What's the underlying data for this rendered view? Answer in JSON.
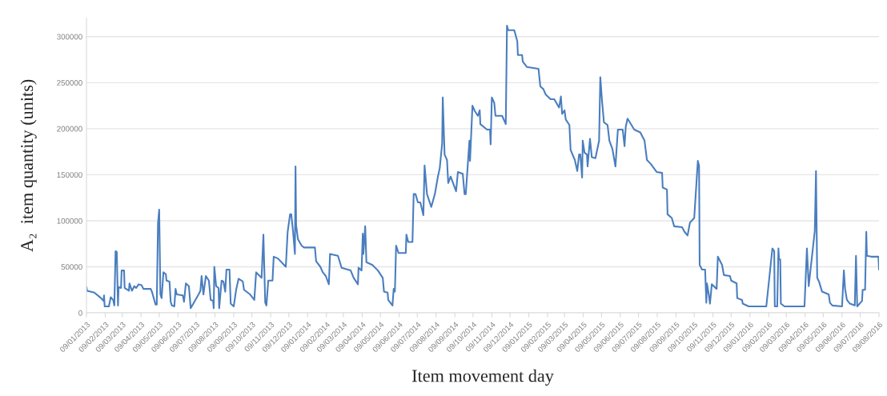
{
  "chart_data": {
    "type": "line",
    "xlabel": "Item movement day",
    "ylabel": "A₂  item quantity (units)",
    "x": [
      "2013-01-09",
      "2013-01-10",
      "2013-01-22",
      "2013-02-02",
      "2013-02-06",
      "2013-02-07",
      "2013-02-08",
      "2013-02-15",
      "2013-02-18",
      "2013-02-22",
      "2013-02-24",
      "2013-02-26",
      "2013-02-28",
      "2013-03-02",
      "2013-03-03",
      "2013-03-07",
      "2013-03-08",
      "2013-03-12",
      "2013-03-13",
      "2013-03-20",
      "2013-03-21",
      "2013-03-25",
      "2013-03-29",
      "2013-04-01",
      "2013-04-05",
      "2013-04-10",
      "2013-04-13",
      "2013-04-25",
      "2013-04-27",
      "2013-05-03",
      "2013-05-05",
      "2013-05-07",
      "2013-05-09",
      "2013-05-11",
      "2013-05-13",
      "2013-05-16",
      "2013-05-20",
      "2013-05-21",
      "2013-05-26",
      "2013-05-28",
      "2013-05-30",
      "2013-06-03",
      "2013-06-05",
      "2013-06-07",
      "2013-06-17",
      "2013-06-19",
      "2013-06-22",
      "2013-06-27",
      "2013-06-30",
      "2013-07-13",
      "2013-07-16",
      "2013-07-18",
      "2013-07-21",
      "2013-07-25",
      "2013-07-30",
      "2013-08-02",
      "2013-08-06",
      "2013-08-07",
      "2013-08-08",
      "2013-08-11",
      "2013-08-15",
      "2013-08-16",
      "2013-08-20",
      "2013-08-23",
      "2013-08-26",
      "2013-08-28",
      "2013-09-02",
      "2013-09-04",
      "2013-09-09",
      "2013-09-13",
      "2013-09-17",
      "2013-09-24",
      "2013-09-26",
      "2013-10-06",
      "2013-10-13",
      "2013-10-16",
      "2013-10-25",
      "2013-10-28",
      "2013-10-31",
      "2013-11-02",
      "2013-11-05",
      "2013-11-12",
      "2013-11-14",
      "2013-11-21",
      "2013-12-04",
      "2013-12-07",
      "2013-12-11",
      "2013-12-13",
      "2013-12-16",
      "2013-12-19",
      "2013-12-20",
      "2013-12-21",
      "2013-12-24",
      "2013-12-30",
      "2014-01-03",
      "2014-01-21",
      "2014-01-23",
      "2014-01-30",
      "2014-02-03",
      "2014-02-08",
      "2014-02-13",
      "2014-02-15",
      "2014-02-28",
      "2014-03-06",
      "2014-03-21",
      "2014-03-26",
      "2014-04-02",
      "2014-04-03",
      "2014-04-08",
      "2014-04-10",
      "2014-04-11",
      "2014-04-14",
      "2014-04-16",
      "2014-04-26",
      "2014-05-05",
      "2014-05-13",
      "2014-05-15",
      "2014-05-21",
      "2014-05-22",
      "2014-05-29",
      "2014-05-31",
      "2014-06-02",
      "2014-06-04",
      "2014-06-08",
      "2014-06-20",
      "2014-06-21",
      "2014-06-24",
      "2014-07-01",
      "2014-07-03",
      "2014-07-06",
      "2014-07-10",
      "2014-07-14",
      "2014-07-19",
      "2014-07-21",
      "2014-07-25",
      "2014-08-01",
      "2014-08-07",
      "2014-08-12",
      "2014-08-15",
      "2014-08-19",
      "2014-08-20",
      "2014-08-23",
      "2014-08-27",
      "2014-08-29",
      "2014-09-02",
      "2014-09-11",
      "2014-09-14",
      "2014-09-22",
      "2014-09-25",
      "2014-09-27",
      "2014-10-03",
      "2014-10-04",
      "2014-10-08",
      "2014-10-12",
      "2014-10-17",
      "2014-10-20",
      "2014-10-21",
      "2014-11-01",
      "2014-11-06",
      "2014-11-07",
      "2014-11-09",
      "2014-11-13",
      "2014-11-15",
      "2014-11-26",
      "2014-12-02",
      "2014-12-04",
      "2014-12-06",
      "2014-12-16",
      "2014-12-21",
      "2014-12-22",
      "2014-12-29",
      "2014-12-30",
      "2015-01-06",
      "2015-01-25",
      "2015-01-28",
      "2015-02-02",
      "2015-02-06",
      "2015-02-14",
      "2015-02-20",
      "2015-02-28",
      "2015-03-03",
      "2015-03-05",
      "2015-03-09",
      "2015-03-11",
      "2015-03-17",
      "2015-03-19",
      "2015-03-26",
      "2015-03-30",
      "2015-04-02",
      "2015-04-04",
      "2015-04-07",
      "2015-04-08",
      "2015-04-11",
      "2015-04-15",
      "2015-04-16",
      "2015-04-20",
      "2015-04-23",
      "2015-04-29",
      "2015-05-05",
      "2015-05-07",
      "2015-05-10",
      "2015-05-13",
      "2015-05-19",
      "2015-05-22",
      "2015-05-27",
      "2015-06-01",
      "2015-06-05",
      "2015-06-13",
      "2015-06-16",
      "2015-06-18",
      "2015-06-21",
      "2015-07-02",
      "2015-07-12",
      "2015-07-19",
      "2015-07-23",
      "2015-07-29",
      "2015-08-08",
      "2015-08-17",
      "2015-08-18",
      "2015-08-25",
      "2015-08-26",
      "2015-09-02",
      "2015-09-06",
      "2015-09-19",
      "2015-09-23",
      "2015-09-28",
      "2015-10-02",
      "2015-10-09",
      "2015-10-15",
      "2015-10-17",
      "2015-10-18",
      "2015-10-22",
      "2015-10-27",
      "2015-10-29",
      "2015-10-30",
      "2015-11-02",
      "2015-11-04",
      "2015-11-07",
      "2015-11-15",
      "2015-11-17",
      "2015-11-24",
      "2015-11-27",
      "2015-12-07",
      "2015-12-09",
      "2015-12-18",
      "2015-12-19",
      "2015-12-27",
      "2015-12-28",
      "2016-01-07",
      "2016-02-05",
      "2016-02-15",
      "2016-02-18",
      "2016-02-19",
      "2016-02-23",
      "2016-02-25",
      "2016-02-26",
      "2016-02-28",
      "2016-02-29",
      "2016-03-06",
      "2016-04-08",
      "2016-04-12",
      "2016-04-15",
      "2016-04-25",
      "2016-04-27",
      "2016-04-29",
      "2016-05-02",
      "2016-05-07",
      "2016-05-18",
      "2016-05-20",
      "2016-05-24",
      "2016-06-09",
      "2016-06-12",
      "2016-06-14",
      "2016-06-17",
      "2016-06-22",
      "2016-06-30",
      "2016-07-02",
      "2016-07-04",
      "2016-07-12",
      "2016-07-13",
      "2016-07-17",
      "2016-07-19",
      "2016-07-20",
      "2016-07-27",
      "2016-08-08",
      "2016-08-09"
    ],
    "series": [
      {
        "color": "#4a7ebf",
        "values": [
          28000,
          24000,
          22000,
          16000,
          13000,
          19000,
          7000,
          7000,
          17000,
          14000,
          8000,
          67000,
          66000,
          8000,
          28000,
          27000,
          46000,
          46000,
          27000,
          24000,
          32000,
          24000,
          29000,
          27000,
          31000,
          30000,
          26000,
          26000,
          23000,
          9000,
          9000,
          97000,
          112000,
          20000,
          16000,
          44000,
          42000,
          35000,
          34000,
          12000,
          8000,
          7000,
          26000,
          20000,
          19000,
          12000,
          32000,
          29000,
          5000,
          20000,
          24000,
          40000,
          20000,
          40000,
          35000,
          14000,
          13000,
          5000,
          50000,
          29000,
          27000,
          5000,
          35000,
          34000,
          23000,
          47000,
          47000,
          10000,
          7000,
          25000,
          37000,
          34000,
          25000,
          20000,
          14000,
          44000,
          38000,
          85000,
          11000,
          8000,
          35000,
          35000,
          61000,
          59000,
          50000,
          88000,
          107000,
          107000,
          88000,
          64000,
          159000,
          95000,
          80000,
          73000,
          71000,
          71000,
          56000,
          50000,
          44000,
          40000,
          31000,
          64000,
          62000,
          49000,
          46000,
          38000,
          31000,
          49000,
          46000,
          86000,
          64000,
          94000,
          55000,
          52000,
          46000,
          38000,
          23000,
          22000,
          14000,
          8000,
          26000,
          23000,
          73000,
          65000,
          65000,
          85000,
          77000,
          77000,
          129000,
          129000,
          120000,
          120000,
          106000,
          160000,
          129000,
          115000,
          129000,
          148000,
          157000,
          184000,
          234000,
          172000,
          166000,
          141000,
          148000,
          132000,
          153000,
          151000,
          129000,
          129000,
          187000,
          165000,
          225000,
          219000,
          214000,
          220000,
          205000,
          199000,
          199000,
          183000,
          234000,
          228000,
          214000,
          214000,
          205000,
          312000,
          307000,
          307000,
          295000,
          280000,
          280000,
          273000,
          267000,
          265000,
          246000,
          243000,
          237000,
          232000,
          232000,
          223000,
          235000,
          216000,
          220000,
          210000,
          204000,
          177000,
          166000,
          154000,
          172000,
          172000,
          147000,
          187000,
          174000,
          172000,
          159000,
          189000,
          169000,
          168000,
          187000,
          256000,
          229000,
          207000,
          204000,
          187000,
          178000,
          159000,
          199000,
          199000,
          181000,
          202000,
          211000,
          199000,
          196000,
          187000,
          166000,
          162000,
          153000,
          152000,
          136000,
          134000,
          107000,
          103000,
          94000,
          93000,
          88000,
          84000,
          98000,
          103000,
          165000,
          160000,
          52000,
          47000,
          47000,
          11000,
          32000,
          20000,
          10000,
          31000,
          26000,
          61000,
          52000,
          41000,
          40000,
          35000,
          32000,
          16000,
          14000,
          10000,
          7000,
          7000,
          70000,
          67000,
          7000,
          7000,
          70000,
          58000,
          58000,
          10000,
          7000,
          7000,
          70000,
          29000,
          89000,
          154000,
          38000,
          34000,
          23000,
          20000,
          11000,
          8000,
          7000,
          46000,
          26000,
          14000,
          10000,
          8000,
          62000,
          7000,
          13000,
          25000,
          25000,
          88000,
          62000,
          61000,
          61000,
          47000
        ]
      }
    ],
    "xlim": [
      "2013-01-09",
      "2016-08-09"
    ],
    "xticks": [
      {
        "value": "2013-01-09",
        "label": "09/01/2013"
      },
      {
        "value": "2013-02-09",
        "label": "09/02/2013"
      },
      {
        "value": "2013-03-09",
        "label": "09/03/2013"
      },
      {
        "value": "2013-04-09",
        "label": "09/04/2013"
      },
      {
        "value": "2013-05-09",
        "label": "09/05/2013"
      },
      {
        "value": "2013-06-09",
        "label": "09/06/2013"
      },
      {
        "value": "2013-07-09",
        "label": "09/07/2013"
      },
      {
        "value": "2013-08-09",
        "label": "09/08/2013"
      },
      {
        "value": "2013-09-09",
        "label": "09/09/2013"
      },
      {
        "value": "2013-10-09",
        "label": "09/10/2013"
      },
      {
        "value": "2013-11-09",
        "label": "09/11/2013"
      },
      {
        "value": "2013-12-09",
        "label": "09/12/2013"
      },
      {
        "value": "2014-01-09",
        "label": "09/01/2014"
      },
      {
        "value": "2014-02-09",
        "label": "09/02/2014"
      },
      {
        "value": "2014-03-09",
        "label": "09/03/2014"
      },
      {
        "value": "2014-04-09",
        "label": "09/04/2014"
      },
      {
        "value": "2014-05-09",
        "label": "09/05/2014"
      },
      {
        "value": "2014-06-09",
        "label": "09/06/2014"
      },
      {
        "value": "2014-07-09",
        "label": "09/07/2014"
      },
      {
        "value": "2014-08-09",
        "label": "09/08/2014"
      },
      {
        "value": "2014-09-09",
        "label": "09/09/2014"
      },
      {
        "value": "2014-10-09",
        "label": "09/10/2014"
      },
      {
        "value": "2014-11-09",
        "label": "09/11/2014"
      },
      {
        "value": "2014-12-09",
        "label": "09/12/2014"
      },
      {
        "value": "2015-01-09",
        "label": "09/01/2015"
      },
      {
        "value": "2015-02-09",
        "label": "09/02/2015"
      },
      {
        "value": "2015-03-09",
        "label": "09/03/2015"
      },
      {
        "value": "2015-04-09",
        "label": "09/04/2015"
      },
      {
        "value": "2015-05-09",
        "label": "09/05/2015"
      },
      {
        "value": "2015-06-09",
        "label": "09/06/2015"
      },
      {
        "value": "2015-07-09",
        "label": "09/07/2015"
      },
      {
        "value": "2015-08-09",
        "label": "09/08/2015"
      },
      {
        "value": "2015-09-09",
        "label": "09/09/2015"
      },
      {
        "value": "2015-10-09",
        "label": "09/10/2015"
      },
      {
        "value": "2015-11-09",
        "label": "09/11/2015"
      },
      {
        "value": "2015-12-09",
        "label": "09/12/2015"
      },
      {
        "value": "2016-01-09",
        "label": "09/01/2016"
      },
      {
        "value": "2016-02-09",
        "label": "09/02/2016"
      },
      {
        "value": "2016-03-09",
        "label": "09/03/2016"
      },
      {
        "value": "2016-04-09",
        "label": "09/04/2016"
      },
      {
        "value": "2016-05-09",
        "label": "09/05/2016"
      },
      {
        "value": "2016-06-09",
        "label": "09/06/2016"
      },
      {
        "value": "2016-07-09",
        "label": "09/07/2016"
      },
      {
        "value": "2016-08-09",
        "label": "09/08/2016"
      }
    ],
    "ylim": [
      0,
      320000
    ],
    "yticks": [
      0,
      50000,
      100000,
      150000,
      200000,
      250000,
      300000
    ],
    "grid": "y",
    "legend": false
  }
}
